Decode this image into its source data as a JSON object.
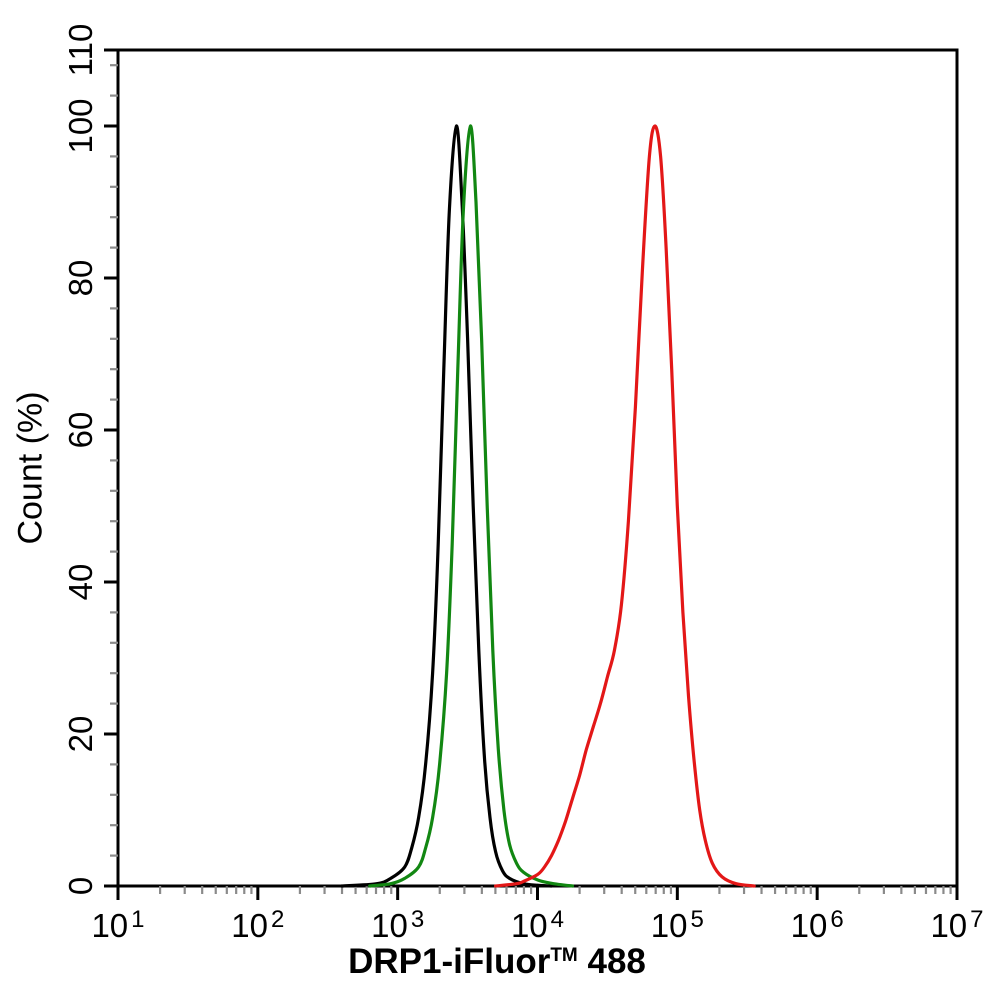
{
  "chart_data": {
    "type": "line",
    "chart_kind": "flow-cytometry-histogram",
    "title": "",
    "xlabel": {
      "main": "DRP1-iFluor",
      "sup": "TM",
      "tail": " 488"
    },
    "ylabel": "Count (%)",
    "x_scale": "log",
    "x_log_min": 1,
    "x_log_max": 7,
    "x_tick_base": "10",
    "x_major_tick_exponents": [
      1,
      2,
      3,
      4,
      5,
      6,
      7
    ],
    "ylim": [
      0,
      110
    ],
    "y_major_ticks": [
      0,
      20,
      40,
      60,
      80,
      100,
      110
    ],
    "y_minor_step": 4,
    "grid": false,
    "legend": "none",
    "axis_color": "#000000",
    "minor_tick_color": "#8a8a8a",
    "series": [
      {
        "name": "black",
        "color": "#000000",
        "peak_log10_x": 3.42,
        "peak_percent": 100,
        "points": [
          [
            2.6,
            0
          ],
          [
            2.85,
            0.3
          ],
          [
            2.95,
            1
          ],
          [
            3.05,
            2.5
          ],
          [
            3.1,
            5
          ],
          [
            3.15,
            9
          ],
          [
            3.2,
            16
          ],
          [
            3.25,
            28
          ],
          [
            3.29,
            45
          ],
          [
            3.33,
            68
          ],
          [
            3.37,
            89
          ],
          [
            3.42,
            100
          ],
          [
            3.46,
            90
          ],
          [
            3.5,
            72
          ],
          [
            3.54,
            50
          ],
          [
            3.58,
            31
          ],
          [
            3.62,
            17
          ],
          [
            3.66,
            9
          ],
          [
            3.7,
            4.5
          ],
          [
            3.75,
            2
          ],
          [
            3.8,
            1
          ],
          [
            3.9,
            0.3
          ],
          [
            4.0,
            0.1
          ],
          [
            4.1,
            0
          ]
        ]
      },
      {
        "name": "green",
        "color": "#128712",
        "peak_log10_x": 3.52,
        "peak_percent": 100,
        "points": [
          [
            2.8,
            0
          ],
          [
            2.95,
            0.3
          ],
          [
            3.05,
            1
          ],
          [
            3.15,
            2.5
          ],
          [
            3.2,
            5
          ],
          [
            3.25,
            9
          ],
          [
            3.3,
            16
          ],
          [
            3.35,
            28
          ],
          [
            3.39,
            45
          ],
          [
            3.43,
            68
          ],
          [
            3.47,
            89
          ],
          [
            3.52,
            100
          ],
          [
            3.56,
            90
          ],
          [
            3.6,
            72
          ],
          [
            3.64,
            50
          ],
          [
            3.68,
            31
          ],
          [
            3.72,
            18
          ],
          [
            3.76,
            10
          ],
          [
            3.8,
            5.5
          ],
          [
            3.85,
            3
          ],
          [
            3.9,
            1.8
          ],
          [
            4.0,
            0.8
          ],
          [
            4.1,
            0.35
          ],
          [
            4.25,
            0
          ]
        ]
      },
      {
        "name": "red",
        "color": "#e31717",
        "peak_log10_x": 4.84,
        "peak_percent": 100,
        "points": [
          [
            3.7,
            0
          ],
          [
            3.85,
            0.3
          ],
          [
            3.9,
            0.6
          ],
          [
            4.0,
            1.5
          ],
          [
            4.05,
            2.5
          ],
          [
            4.1,
            4
          ],
          [
            4.15,
            6
          ],
          [
            4.2,
            8.5
          ],
          [
            4.25,
            11.5
          ],
          [
            4.3,
            14.5
          ],
          [
            4.35,
            18
          ],
          [
            4.4,
            21
          ],
          [
            4.45,
            24
          ],
          [
            4.5,
            27.5
          ],
          [
            4.55,
            31
          ],
          [
            4.6,
            37
          ],
          [
            4.65,
            48
          ],
          [
            4.7,
            63
          ],
          [
            4.75,
            81
          ],
          [
            4.8,
            96
          ],
          [
            4.84,
            100
          ],
          [
            4.88,
            96
          ],
          [
            4.92,
            84
          ],
          [
            4.96,
            68
          ],
          [
            5.0,
            50
          ],
          [
            5.04,
            36
          ],
          [
            5.08,
            25
          ],
          [
            5.12,
            16.5
          ],
          [
            5.16,
            10
          ],
          [
            5.2,
            6
          ],
          [
            5.25,
            3
          ],
          [
            5.32,
            1.2
          ],
          [
            5.42,
            0.3
          ],
          [
            5.55,
            0
          ]
        ]
      }
    ]
  }
}
